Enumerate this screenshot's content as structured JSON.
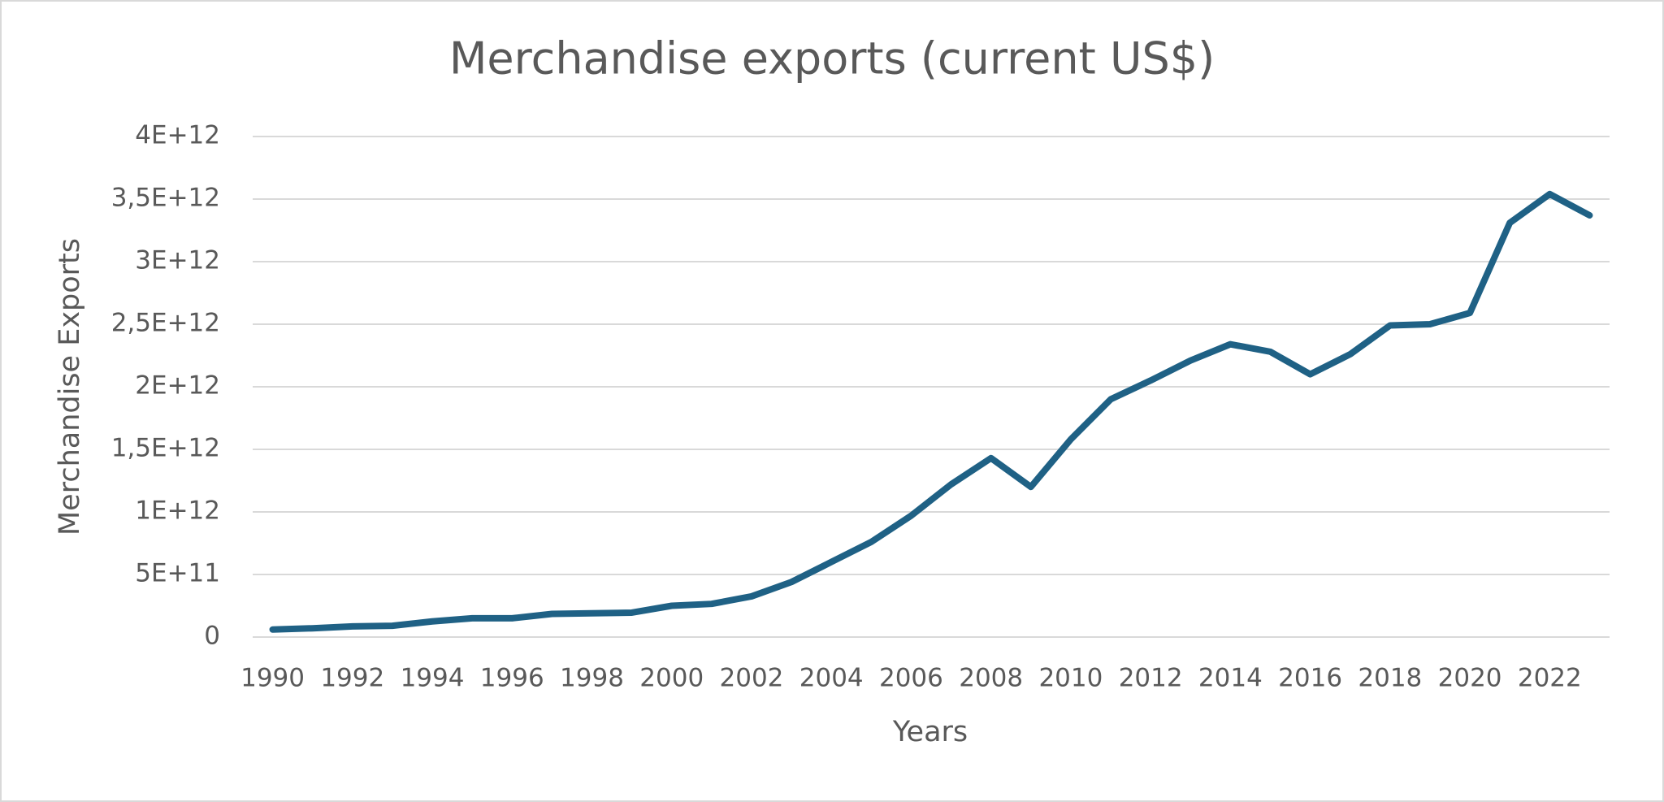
{
  "chart_data": {
    "type": "line",
    "title": "Merchandise exports (current US$)",
    "x_label": "Years",
    "y_label": "Merchandise Exports",
    "x": [
      1990,
      1991,
      1992,
      1993,
      1994,
      1995,
      1996,
      1997,
      1998,
      1999,
      2000,
      2001,
      2002,
      2003,
      2004,
      2005,
      2006,
      2007,
      2008,
      2009,
      2010,
      2011,
      2012,
      2013,
      2014,
      2015,
      2016,
      2017,
      2018,
      2019,
      2020,
      2021,
      2022,
      2023
    ],
    "values": [
      60000000000.0,
      70000000000.0,
      85000000000.0,
      90000000000.0,
      125000000000.0,
      150000000000.0,
      150000000000.0,
      185000000000.0,
      190000000000.0,
      195000000000.0,
      250000000000.0,
      265000000000.0,
      325000000000.0,
      440000000000.0,
      600000000000.0,
      760000000000.0,
      970000000000.0,
      1220000000000.0,
      1430000000000.0,
      1200000000000.0,
      1580000000000.0,
      1900000000000.0,
      2050000000000.0,
      2210000000000.0,
      2340000000000.0,
      2280000000000.0,
      2100000000000.0,
      2260000000000.0,
      2490000000000.0,
      2500000000000.0,
      2590000000000.0,
      3310000000000.0,
      3540000000000.0,
      3370000000000.0
    ],
    "color": "#1f6185",
    "xlim": [
      1989.5,
      2023.5
    ],
    "xticks": [
      1990,
      1992,
      1994,
      1996,
      1998,
      2000,
      2002,
      2004,
      2006,
      2008,
      2010,
      2012,
      2014,
      2016,
      2018,
      2020,
      2022
    ],
    "ylim": [
      0,
      4000000000000.0
    ],
    "yticks": [
      0,
      {
        "value": 500000000000.0,
        "label": "5E+11"
      },
      {
        "value": 1000000000000.0,
        "label": "1E+12"
      },
      {
        "value": 1500000000000.0,
        "label": "1,5E+12"
      },
      {
        "value": 2000000000000.0,
        "label": "2E+12"
      },
      {
        "value": 2500000000000.0,
        "label": "2,5E+12"
      },
      {
        "value": 3000000000000.0,
        "label": "3E+12"
      },
      {
        "value": 3500000000000.0,
        "label": "3,5E+12"
      },
      {
        "value": 4000000000000.0,
        "label": "4E+12"
      }
    ],
    "grid": true
  }
}
